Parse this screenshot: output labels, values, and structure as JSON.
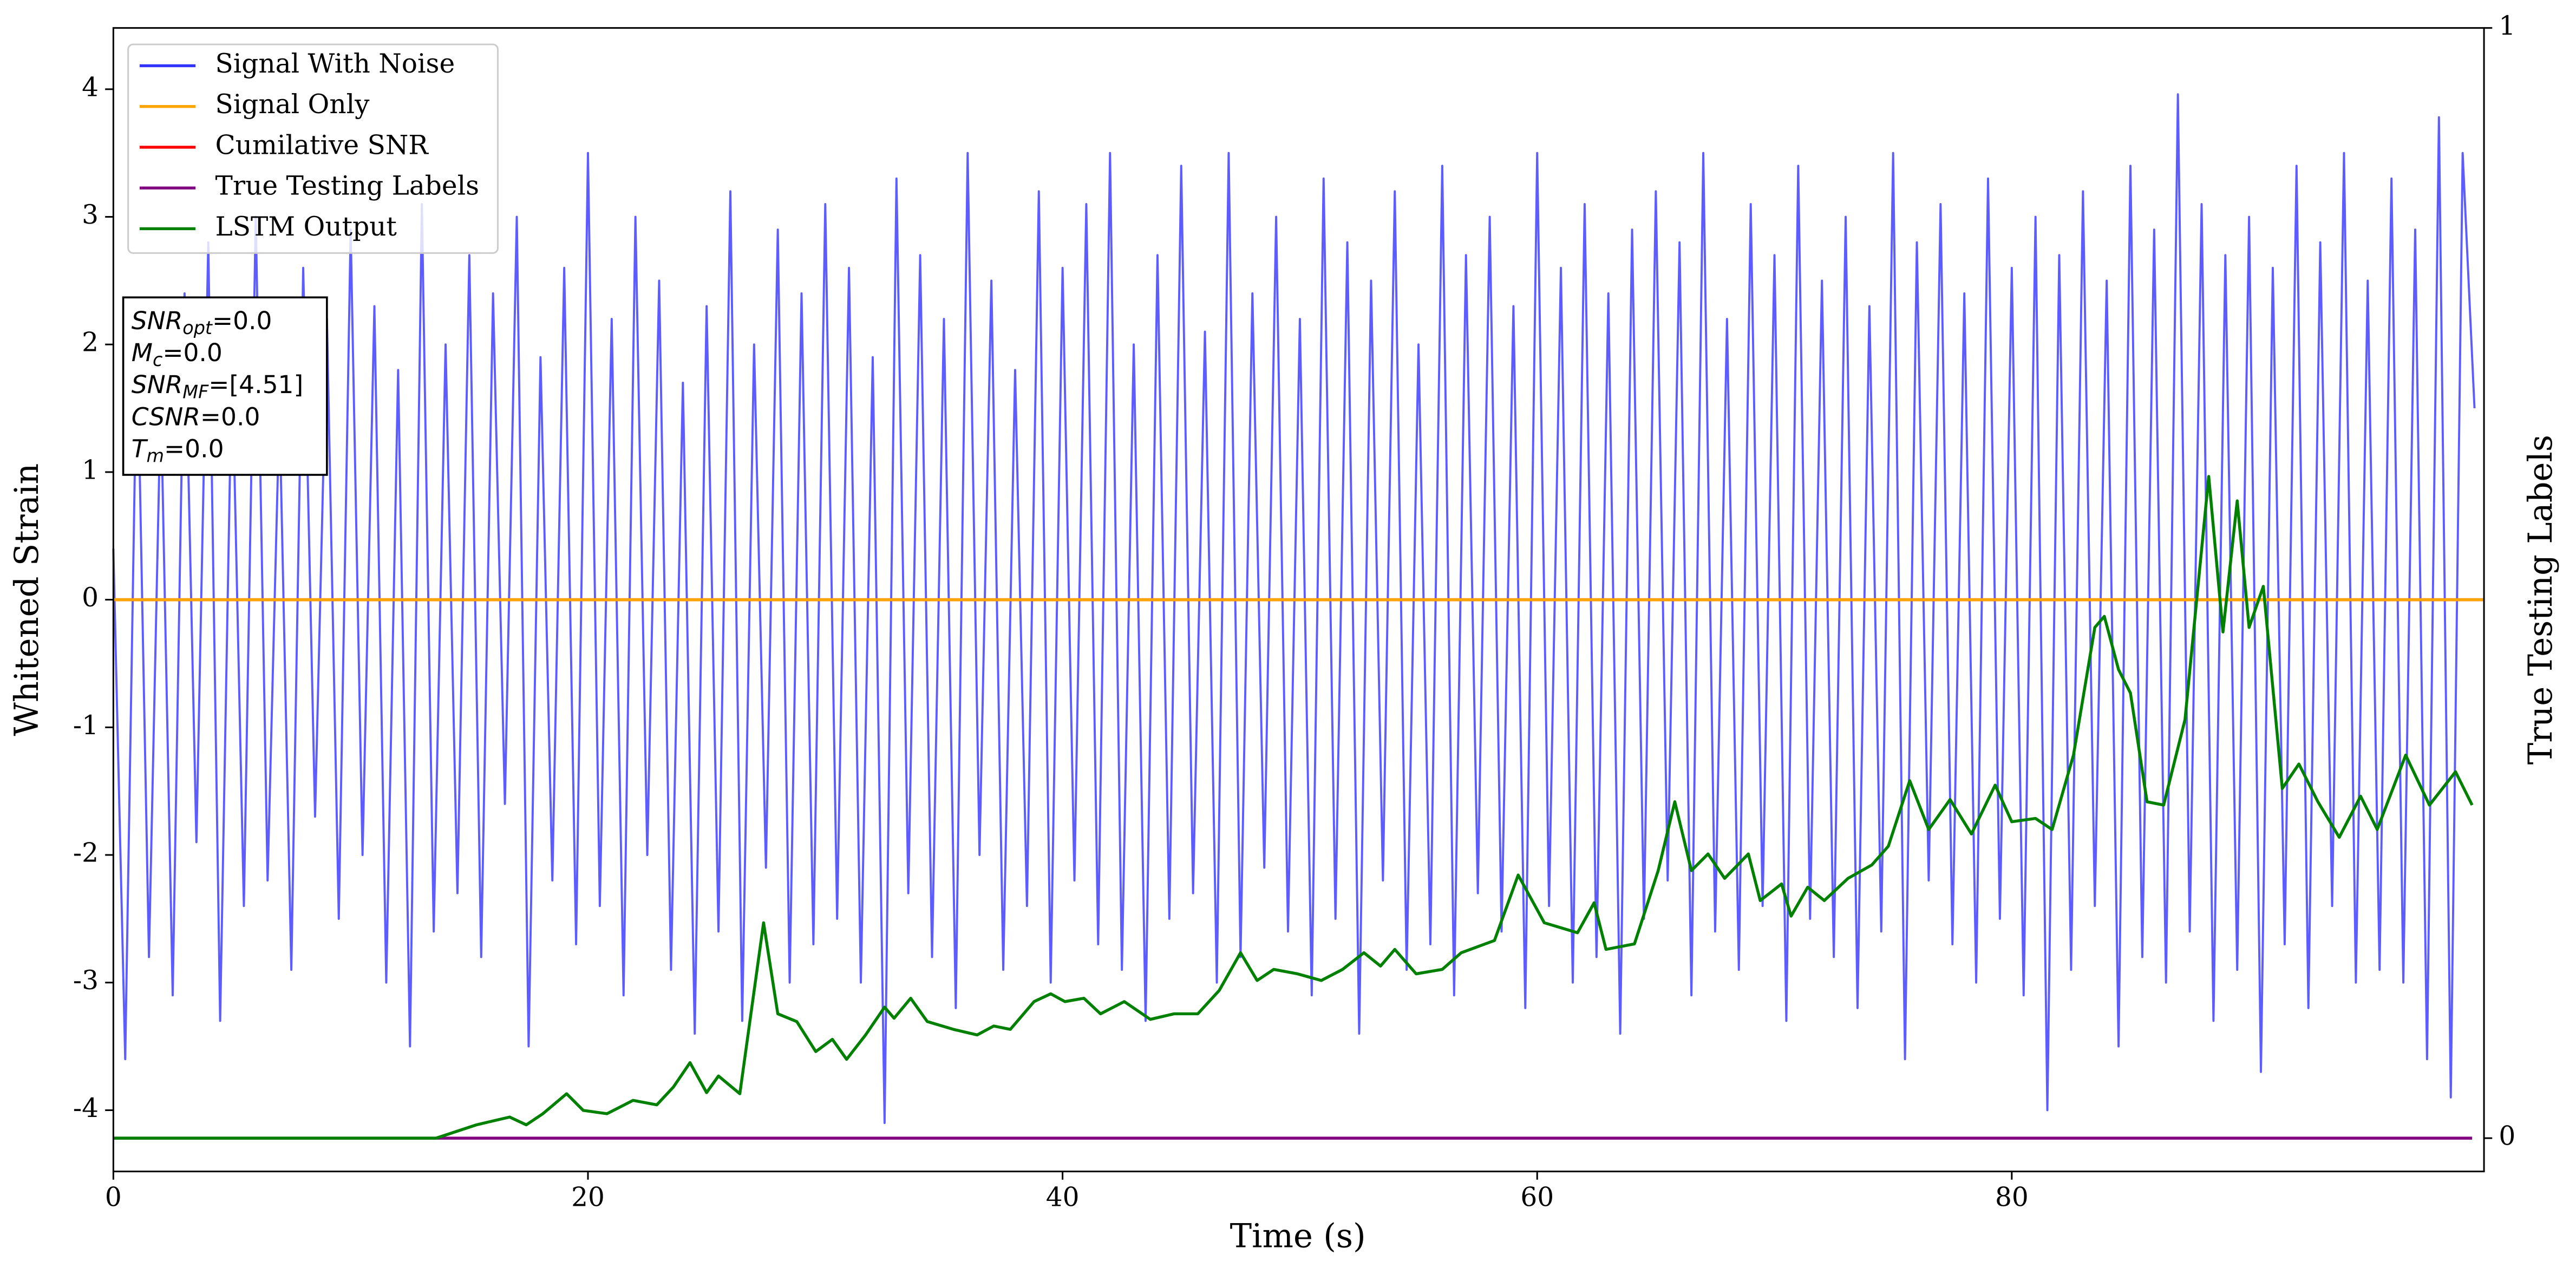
{
  "chart_data": {
    "type": "line",
    "xlabel": "Time (s)",
    "ylabel": "Whitened Strain",
    "y2label": "True Testing Labels",
    "xlim": [
      0,
      99.9
    ],
    "xticks": [
      0,
      20,
      40,
      60,
      80
    ],
    "ylim": [
      -4.48,
      4.48
    ],
    "yticks": [
      -4,
      -3,
      -2,
      -1,
      0,
      1,
      2,
      3,
      4
    ],
    "y2lim": [
      -0.03,
      1.0
    ],
    "y2ticks": [
      0,
      1
    ],
    "legend": "upper left",
    "series": [
      {
        "name": "Signal With Noise",
        "color": "#3333ff",
        "x": [
          0,
          0.5,
          1,
          1.5,
          2,
          2.5,
          3,
          3.5,
          4,
          4.5,
          5,
          5.5,
          6,
          6.5,
          7,
          7.5,
          8,
          8.5,
          9,
          9.5,
          10,
          10.5,
          11,
          11.5,
          12,
          12.5,
          13,
          13.5,
          14,
          14.5,
          15,
          15.5,
          16,
          16.5,
          17,
          17.5,
          18,
          18.5,
          19,
          19.5,
          20,
          20.5,
          21,
          21.5,
          22,
          22.5,
          23,
          23.5,
          24,
          24.5,
          25,
          25.5,
          26,
          26.5,
          27,
          27.5,
          28,
          28.5,
          29,
          29.5,
          30,
          30.5,
          31,
          31.5,
          32,
          32.5,
          33,
          33.5,
          34,
          34.5,
          35,
          35.5,
          36,
          36.5,
          37,
          37.5,
          38,
          38.5,
          39,
          39.5,
          40,
          40.5,
          41,
          41.5,
          42,
          42.5,
          43,
          43.5,
          44,
          44.5,
          45,
          45.5,
          46,
          46.5,
          47,
          47.5,
          48,
          48.5,
          49,
          49.5,
          50,
          50.5,
          51,
          51.5,
          52,
          52.5,
          53,
          53.5,
          54,
          54.5,
          55,
          55.5,
          56,
          56.5,
          57,
          57.5,
          58,
          58.5,
          59,
          59.5,
          60,
          60.5,
          61,
          61.5,
          62,
          62.5,
          63,
          63.5,
          64,
          64.5,
          65,
          65.5,
          66,
          66.5,
          67,
          67.5,
          68,
          68.5,
          69,
          69.5,
          70,
          70.5,
          71,
          71.5,
          72,
          72.5,
          73,
          73.5,
          74,
          74.5,
          75,
          75.5,
          76,
          76.5,
          77,
          77.5,
          78,
          78.5,
          79,
          79.5,
          80,
          80.5,
          81,
          81.5,
          82,
          82.5,
          83,
          83.5,
          84,
          84.5,
          85,
          85.5,
          86,
          86.5,
          87,
          87.5,
          88,
          88.5,
          89,
          89.5,
          90,
          90.5,
          91,
          91.5,
          92,
          92.5,
          93,
          93.5,
          94,
          94.5,
          95,
          95.5,
          96,
          96.5,
          97,
          97.5,
          98,
          98.5,
          99,
          99.5
        ],
        "values": [
          0.4,
          -3.6,
          2.1,
          -2.8,
          1.6,
          -3.1,
          2.4,
          -1.9,
          2.8,
          -3.3,
          1.9,
          -2.4,
          3.0,
          -2.2,
          1.5,
          -2.9,
          2.6,
          -1.7,
          2.2,
          -2.5,
          2.9,
          -2.0,
          2.3,
          -3.0,
          1.8,
          -3.5,
          3.1,
          -2.6,
          2.0,
          -2.3,
          2.7,
          -2.8,
          2.4,
          -1.6,
          3.0,
          -3.5,
          1.9,
          -2.2,
          2.6,
          -2.7,
          3.5,
          -2.4,
          2.2,
          -3.1,
          3.0,
          -2.0,
          2.5,
          -2.9,
          1.7,
          -3.4,
          2.3,
          -2.6,
          3.2,
          -3.3,
          2.0,
          -2.1,
          2.9,
          -3.0,
          2.4,
          -2.7,
          3.1,
          -2.5,
          2.6,
          -3.0,
          1.9,
          -4.1,
          3.3,
          -2.3,
          2.7,
          -2.8,
          2.2,
          -3.2,
          3.5,
          -2.0,
          2.5,
          -2.9,
          1.8,
          -2.4,
          3.2,
          -3.0,
          2.6,
          -2.2,
          3.1,
          -2.7,
          3.5,
          -2.9,
          2.0,
          -3.3,
          2.7,
          -2.5,
          3.4,
          -2.3,
          2.1,
          -3.0,
          3.5,
          -2.8,
          2.4,
          -2.1,
          3.0,
          -2.6,
          2.2,
          -3.1,
          3.3,
          -2.5,
          2.8,
          -3.4,
          2.5,
          -2.2,
          3.2,
          -2.9,
          2.0,
          -2.7,
          3.4,
          -3.1,
          2.7,
          -2.3,
          3.0,
          -2.6,
          2.3,
          -3.2,
          3.5,
          -2.4,
          2.6,
          -3.0,
          3.1,
          -2.8,
          2.4,
          -3.4,
          2.9,
          -2.5,
          3.2,
          -2.2,
          2.8,
          -3.1,
          3.5,
          -2.6,
          2.2,
          -2.9,
          3.1,
          -2.4,
          2.7,
          -3.3,
          3.4,
          -2.5,
          2.5,
          -2.8,
          3.0,
          -3.2,
          2.3,
          -2.6,
          3.5,
          -3.6,
          2.8,
          -2.2,
          3.1,
          -2.7,
          2.4,
          -3.0,
          3.3,
          -2.5,
          2.6,
          -3.1,
          3.0,
          -4.0,
          2.7,
          -2.9,
          3.2,
          -2.4,
          2.5,
          -3.5,
          3.4,
          -2.8,
          2.9,
          -3.0,
          3.96,
          -2.6,
          3.1,
          -3.3,
          2.7,
          -2.9,
          3.0,
          -3.7,
          2.6,
          -2.7,
          3.4,
          -3.2,
          2.8,
          -2.4,
          3.5,
          -3.0,
          2.5,
          -2.9,
          3.3,
          -3.0,
          2.9,
          -3.6,
          3.78,
          -3.9,
          3.5,
          1.5
        ]
      },
      {
        "name": "Signal Only",
        "color": "#ffa500",
        "x": [
          0,
          99.9
        ],
        "values": [
          0,
          0
        ]
      },
      {
        "name": "Cumilative SNR",
        "color": "#ff0000",
        "x": [
          0,
          99.9
        ],
        "values": [
          0,
          0
        ]
      },
      {
        "name": "True Testing Labels",
        "color": "#800080",
        "axis": "y2",
        "x": [
          0,
          99.4
        ],
        "values": [
          0,
          0
        ]
      },
      {
        "name": "LSTM Output",
        "color": "#008000",
        "axis": "y2",
        "x": [
          0,
          13.0,
          13.6,
          15.3,
          16.7,
          17.4,
          18.1,
          19.1,
          19.8,
          20.8,
          21.9,
          22.9,
          23.6,
          24.3,
          25.0,
          25.5,
          26.4,
          27.4,
          28.0,
          28.8,
          29.6,
          30.3,
          30.9,
          31.7,
          32.5,
          32.9,
          33.6,
          34.3,
          35.4,
          36.4,
          37.1,
          37.8,
          38.8,
          39.5,
          40.1,
          40.9,
          41.6,
          42.6,
          43.7,
          44.7,
          45.7,
          46.6,
          47.5,
          48.2,
          48.9,
          49.9,
          50.9,
          51.8,
          52.7,
          53.4,
          54.0,
          54.9,
          56.0,
          56.8,
          58.2,
          59.2,
          60.3,
          61.7,
          62.4,
          62.9,
          64.1,
          65.1,
          65.8,
          66.5,
          67.2,
          67.9,
          68.9,
          69.4,
          70.3,
          70.7,
          71.4,
          72.1,
          73.1,
          74.1,
          74.8,
          75.7,
          76.5,
          77.4,
          78.3,
          79.3,
          80.0,
          81.0,
          81.7,
          82.6,
          83.5,
          83.9,
          84.5,
          85.0,
          85.7,
          86.4,
          87.3,
          88.3,
          88.9,
          89.5,
          90.0,
          90.6,
          91.4,
          92.1,
          92.9,
          93.8,
          94.7,
          95.4,
          96.6,
          97.6,
          98.7,
          99.4
        ],
        "values": [
          0,
          0,
          0,
          0.012,
          0.019,
          0.012,
          0.022,
          0.04,
          0.025,
          0.022,
          0.034,
          0.03,
          0.046,
          0.068,
          0.041,
          0.056,
          0.04,
          0.194,
          0.112,
          0.105,
          0.078,
          0.089,
          0.071,
          0.093,
          0.118,
          0.108,
          0.126,
          0.105,
          0.098,
          0.093,
          0.101,
          0.098,
          0.123,
          0.13,
          0.123,
          0.126,
          0.112,
          0.123,
          0.107,
          0.112,
          0.112,
          0.133,
          0.167,
          0.142,
          0.152,
          0.148,
          0.142,
          0.152,
          0.167,
          0.155,
          0.17,
          0.148,
          0.152,
          0.167,
          0.178,
          0.237,
          0.194,
          0.185,
          0.212,
          0.17,
          0.175,
          0.241,
          0.303,
          0.241,
          0.256,
          0.234,
          0.256,
          0.214,
          0.229,
          0.2,
          0.226,
          0.214,
          0.234,
          0.246,
          0.263,
          0.322,
          0.278,
          0.305,
          0.274,
          0.318,
          0.285,
          0.288,
          0.278,
          0.345,
          0.46,
          0.47,
          0.422,
          0.401,
          0.303,
          0.3,
          0.377,
          0.596,
          0.456,
          0.574,
          0.46,
          0.497,
          0.315,
          0.337,
          0.303,
          0.271,
          0.308,
          0.278,
          0.345,
          0.3,
          0.33,
          0.3
        ]
      }
    ],
    "annotations": [
      {
        "main": "SNR",
        "sub": "opt",
        "rest": "=0.0"
      },
      {
        "main": "M",
        "sub": "c",
        "rest": "=0.0"
      },
      {
        "main": "SNR",
        "sub": "MF",
        "rest": "=[4.51]"
      },
      {
        "main": "CSNR",
        "rest": "=0.0"
      },
      {
        "main": "T",
        "sub": "m",
        "rest": "=0.0"
      }
    ]
  }
}
